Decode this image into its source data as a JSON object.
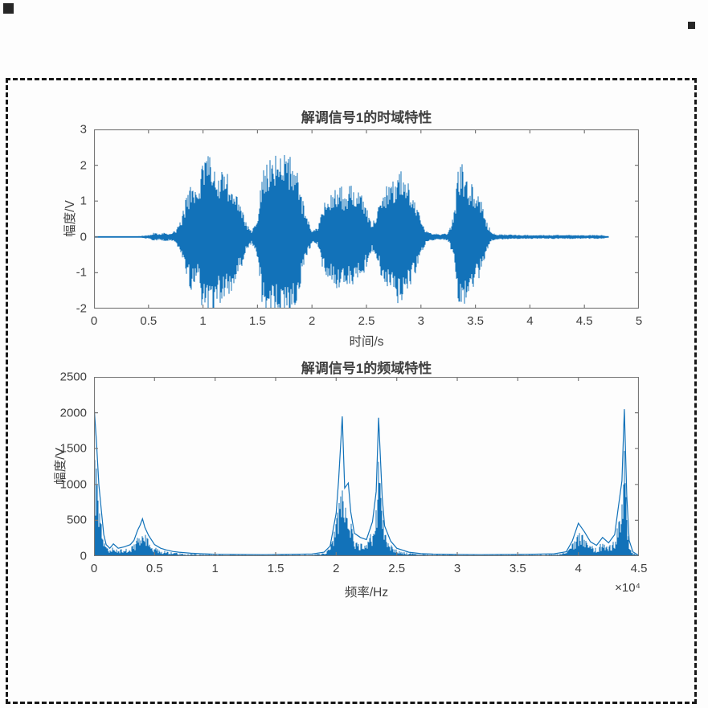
{
  "figure": {
    "background": "#ffffff",
    "marquee_color": "#171717",
    "accent_blue": "#1272b9",
    "axis_color": "#787878",
    "text_color": "#3f3f3f"
  },
  "chart_data": [
    {
      "type": "line",
      "title": "解调信号1的时域特性",
      "xlabel": "时间/s",
      "ylabel": "幅度/V",
      "xlim": [
        0,
        5
      ],
      "ylim": [
        -2,
        3
      ],
      "xticks": [
        0,
        0.5,
        1,
        1.5,
        2,
        2.5,
        3,
        3.5,
        4,
        4.5,
        5
      ],
      "yticks": [
        -2,
        -1,
        0,
        1,
        2,
        3
      ],
      "grid": false,
      "legend": "none",
      "line_color": "#1272b9",
      "axis_color": "#787878",
      "signal_end": 4.72,
      "envelope": [
        [
          0,
          0.02
        ],
        [
          0.4,
          0.02
        ],
        [
          0.5,
          0.05
        ],
        [
          0.55,
          0.12
        ],
        [
          0.6,
          0.08
        ],
        [
          0.65,
          0.13
        ],
        [
          0.7,
          0.1
        ],
        [
          0.75,
          0.18
        ],
        [
          0.8,
          0.5
        ],
        [
          0.85,
          1.2
        ],
        [
          0.9,
          1.6
        ],
        [
          0.95,
          1.3
        ],
        [
          1.0,
          2.2
        ],
        [
          1.05,
          2.3
        ],
        [
          1.1,
          2.15
        ],
        [
          1.15,
          1.85
        ],
        [
          1.2,
          2.0
        ],
        [
          1.25,
          1.6
        ],
        [
          1.3,
          1.25
        ],
        [
          1.35,
          0.9
        ],
        [
          1.4,
          0.35
        ],
        [
          1.45,
          0.18
        ],
        [
          1.5,
          0.6
        ],
        [
          1.55,
          2.1
        ],
        [
          1.6,
          2.25
        ],
        [
          1.65,
          2.3
        ],
        [
          1.7,
          2.2
        ],
        [
          1.75,
          2.3
        ],
        [
          1.8,
          2.25
        ],
        [
          1.85,
          2.05
        ],
        [
          1.9,
          1.3
        ],
        [
          1.95,
          0.6
        ],
        [
          2.0,
          0.18
        ],
        [
          2.05,
          0.25
        ],
        [
          2.1,
          0.9
        ],
        [
          2.15,
          1.25
        ],
        [
          2.2,
          1.35
        ],
        [
          2.25,
          1.5
        ],
        [
          2.3,
          1.3
        ],
        [
          2.35,
          1.45
        ],
        [
          2.4,
          1.35
        ],
        [
          2.45,
          1.2
        ],
        [
          2.5,
          0.85
        ],
        [
          2.55,
          0.35
        ],
        [
          2.6,
          0.7
        ],
        [
          2.65,
          1.35
        ],
        [
          2.7,
          1.55
        ],
        [
          2.75,
          1.65
        ],
        [
          2.8,
          2.0
        ],
        [
          2.85,
          1.75
        ],
        [
          2.9,
          1.5
        ],
        [
          2.95,
          1.05
        ],
        [
          3.0,
          0.45
        ],
        [
          3.05,
          0.18
        ],
        [
          3.1,
          0.1
        ],
        [
          3.2,
          0.08
        ],
        [
          3.25,
          0.12
        ],
        [
          3.3,
          0.6
        ],
        [
          3.35,
          2.1
        ],
        [
          3.4,
          2.0
        ],
        [
          3.45,
          1.55
        ],
        [
          3.5,
          1.35
        ],
        [
          3.55,
          1.05
        ],
        [
          3.6,
          0.45
        ],
        [
          3.65,
          0.12
        ],
        [
          3.7,
          0.08
        ],
        [
          3.9,
          0.06
        ],
        [
          4.1,
          0.05
        ],
        [
          4.3,
          0.06
        ],
        [
          4.5,
          0.05
        ],
        [
          4.65,
          0.06
        ],
        [
          4.72,
          0.02
        ]
      ]
    },
    {
      "type": "line",
      "title": "解调信号1的频域特性",
      "xlabel": "频率/Hz",
      "ylabel": "幅度/V",
      "x_exponent_label": "×10⁴",
      "xlim": [
        0,
        4.5
      ],
      "ylim": [
        0,
        2500
      ],
      "xticks": [
        0,
        0.5,
        1,
        1.5,
        2,
        2.5,
        3,
        3.5,
        4,
        4.5
      ],
      "yticks": [
        0,
        500,
        1000,
        1500,
        2000,
        2500
      ],
      "grid": false,
      "legend": "none",
      "line_color": "#1272b9",
      "axis_color": "#787878",
      "spectrum": [
        [
          0,
          2100
        ],
        [
          0.02,
          1600
        ],
        [
          0.04,
          1000
        ],
        [
          0.06,
          650
        ],
        [
          0.08,
          300
        ],
        [
          0.1,
          160
        ],
        [
          0.13,
          110
        ],
        [
          0.16,
          170
        ],
        [
          0.2,
          110
        ],
        [
          0.25,
          130
        ],
        [
          0.3,
          160
        ],
        [
          0.33,
          220
        ],
        [
          0.36,
          360
        ],
        [
          0.38,
          430
        ],
        [
          0.4,
          520
        ],
        [
          0.42,
          400
        ],
        [
          0.45,
          290
        ],
        [
          0.5,
          160
        ],
        [
          0.55,
          110
        ],
        [
          0.6,
          85
        ],
        [
          0.65,
          65
        ],
        [
          0.7,
          55
        ],
        [
          0.8,
          40
        ],
        [
          0.9,
          32
        ],
        [
          1.0,
          26
        ],
        [
          1.2,
          22
        ],
        [
          1.4,
          20
        ],
        [
          1.6,
          24
        ],
        [
          1.8,
          30
        ],
        [
          1.9,
          55
        ],
        [
          1.95,
          140
        ],
        [
          2.0,
          600
        ],
        [
          2.02,
          1050
        ],
        [
          2.05,
          1950
        ],
        [
          2.07,
          950
        ],
        [
          2.1,
          1020
        ],
        [
          2.12,
          620
        ],
        [
          2.15,
          320
        ],
        [
          2.2,
          260
        ],
        [
          2.25,
          230
        ],
        [
          2.3,
          480
        ],
        [
          2.33,
          900
        ],
        [
          2.35,
          1930
        ],
        [
          2.38,
          820
        ],
        [
          2.4,
          420
        ],
        [
          2.45,
          210
        ],
        [
          2.5,
          110
        ],
        [
          2.6,
          55
        ],
        [
          2.7,
          35
        ],
        [
          2.8,
          28
        ],
        [
          3.0,
          22
        ],
        [
          3.2,
          20
        ],
        [
          3.4,
          22
        ],
        [
          3.6,
          26
        ],
        [
          3.8,
          32
        ],
        [
          3.9,
          60
        ],
        [
          3.95,
          210
        ],
        [
          4.0,
          460
        ],
        [
          4.05,
          340
        ],
        [
          4.1,
          200
        ],
        [
          4.15,
          150
        ],
        [
          4.2,
          260
        ],
        [
          4.25,
          185
        ],
        [
          4.3,
          300
        ],
        [
          4.33,
          680
        ],
        [
          4.36,
          1050
        ],
        [
          4.38,
          2050
        ],
        [
          4.4,
          850
        ],
        [
          4.42,
          220
        ],
        [
          4.45,
          60
        ],
        [
          4.5,
          8
        ]
      ]
    }
  ]
}
